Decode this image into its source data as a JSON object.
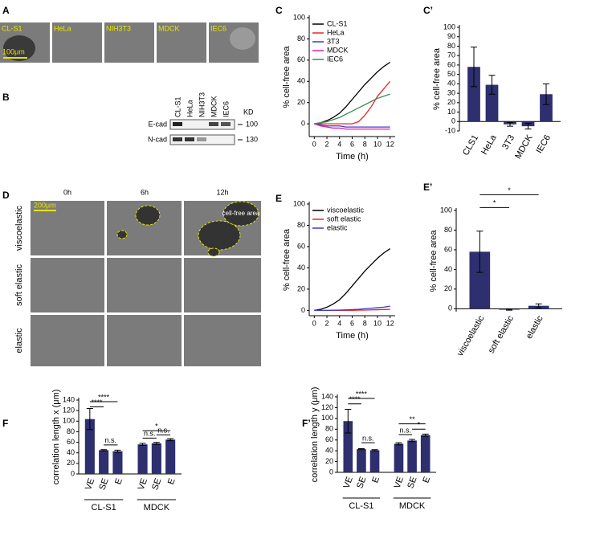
{
  "panel_labels": [
    "A",
    "B",
    "C",
    "C’",
    "D",
    "E",
    "E’",
    "F",
    "F’"
  ],
  "panel_a": {
    "cell_lines": [
      "CL-S1",
      "HeLa",
      "NIH3T3",
      "MDCK",
      "IEC6"
    ],
    "scale_bar": "100μm"
  },
  "panel_b": {
    "lanes": [
      "CL-S1",
      "HeLa",
      "NIH3T3",
      "MDCK",
      "IEC6"
    ],
    "unit": "KD",
    "rows": [
      {
        "label": "E-cad",
        "kd": "100"
      },
      {
        "label": "N-cad",
        "kd": "130"
      }
    ]
  },
  "panel_d": {
    "times": [
      "0h",
      "6h",
      "12h"
    ],
    "conditions": [
      "viscoelastic",
      "soft elastic",
      "elastic"
    ],
    "scale_bar": "200μm",
    "annotation": "cell-free area"
  },
  "chart_data": [
    {
      "type": "line",
      "xlabel": "Time (h)",
      "ylabel": "% cell-free area",
      "x": [
        0,
        1,
        2,
        3,
        4,
        5,
        6,
        7,
        8,
        9,
        10,
        11,
        12
      ],
      "xlim": [
        -0.8,
        12.8
      ],
      "xticks": [
        0,
        2,
        4,
        6,
        8,
        10,
        12
      ],
      "ylim": [
        -12,
        100
      ],
      "yticks": [
        0,
        20,
        40,
        60,
        80,
        100
      ],
      "series": [
        {
          "name": "CL-S1",
          "color": "#000000",
          "values": [
            0,
            1,
            3,
            6,
            10,
            16,
            23,
            30,
            37,
            43,
            49,
            54,
            58
          ]
        },
        {
          "name": "HeLa",
          "color": "#e8262b",
          "values": [
            0,
            0,
            0,
            0,
            0,
            0,
            0,
            2,
            8,
            16,
            26,
            33,
            40
          ]
        },
        {
          "name": "3T3",
          "color": "#3b3bc4",
          "values": [
            0,
            -1,
            -2,
            -2,
            -2,
            -3,
            -3,
            -3,
            -3,
            -3,
            -3,
            -3,
            -3
          ]
        },
        {
          "name": "MDCK",
          "color": "#d61fb8",
          "values": [
            0,
            -2,
            -3,
            -4,
            -4,
            -5,
            -5,
            -5,
            -5,
            -5,
            -5,
            -5,
            -5
          ]
        },
        {
          "name": "IEC6",
          "color": "#3e8a5a",
          "values": [
            0,
            1,
            2,
            4,
            6,
            9,
            12,
            15,
            18,
            21,
            24,
            26,
            28
          ]
        }
      ]
    },
    {
      "type": "bar",
      "ylabel": "% cell-free area",
      "color": "#2e2f6e",
      "categories": [
        "CLS1",
        "HeLa",
        "3T3",
        "MDCK",
        "IEC6"
      ],
      "values": [
        58,
        39,
        -3,
        -5,
        29
      ],
      "errors": [
        21,
        10,
        2,
        3,
        11
      ],
      "ylim": [
        -10,
        100
      ],
      "yticks": [
        -10,
        0,
        10,
        20,
        30,
        40,
        50,
        60,
        70,
        80,
        90,
        100
      ]
    },
    {
      "type": "line",
      "xlabel": "Time (h)",
      "ylabel": "% cell-free area",
      "x": [
        0,
        1,
        2,
        3,
        4,
        5,
        6,
        7,
        8,
        9,
        10,
        11,
        12
      ],
      "xlim": [
        -0.8,
        12.8
      ],
      "xticks": [
        0,
        2,
        4,
        6,
        8,
        10,
        12
      ],
      "ylim": [
        -5,
        100
      ],
      "yticks": [
        0,
        20,
        40,
        60,
        80,
        100
      ],
      "series": [
        {
          "name": "viscoelastic",
          "color": "#000000",
          "values": [
            0,
            1,
            3,
            6,
            10,
            16,
            23,
            30,
            37,
            43,
            49,
            54,
            58
          ]
        },
        {
          "name": "soft elastic",
          "color": "#e8262b",
          "values": [
            0,
            0,
            0,
            0,
            0,
            0,
            0,
            0.2,
            0.3,
            0.5,
            0.6,
            0.8,
            1
          ]
        },
        {
          "name": "elastic",
          "color": "#3b3bc4",
          "values": [
            0,
            0,
            0,
            0.2,
            0.3,
            0.5,
            0.7,
            1,
            1.5,
            2,
            2.5,
            3,
            4
          ]
        }
      ]
    },
    {
      "type": "bar",
      "ylabel": "% cell-free area",
      "color": "#2e2f6e",
      "categories": [
        "viscoelastic",
        "soft elastic",
        "elastic"
      ],
      "values": [
        58,
        -1,
        3
      ],
      "errors": [
        21,
        0.5,
        2
      ],
      "ylim": [
        -3,
        100
      ],
      "yticks": [
        0,
        20,
        40,
        60,
        80,
        100
      ],
      "annotations": [
        "*",
        "*"
      ]
    },
    {
      "type": "bar",
      "ylabel": "correlation length x (μm)",
      "color": "#2e2f6e",
      "categories": [
        "VE",
        "SE",
        "E",
        "VE",
        "SE",
        "E"
      ],
      "groups": [
        "CL-S1",
        "MDCK"
      ],
      "values": [
        104,
        45,
        43,
        56,
        58,
        65
      ],
      "errors": [
        20,
        1,
        2,
        2,
        2,
        2
      ],
      "ylim": [
        0,
        140
      ],
      "yticks": [
        0,
        20,
        40,
        60,
        80,
        100,
        120,
        140
      ],
      "annotations": [
        "****",
        "****",
        "n.s.",
        "*",
        "n.s.",
        "n.s."
      ]
    },
    {
      "type": "bar",
      "ylabel": "correlation length y (μm)",
      "color": "#2e2f6e",
      "categories": [
        "VE",
        "SE",
        "E",
        "VE",
        "SE",
        "E"
      ],
      "groups": [
        "CL-S1",
        "MDCK"
      ],
      "values": [
        95,
        43,
        41,
        53,
        59,
        69
      ],
      "errors": [
        22,
        1,
        1,
        2,
        2,
        2
      ],
      "ylim": [
        0,
        140
      ],
      "yticks": [
        0,
        20,
        40,
        60,
        80,
        100,
        120,
        140
      ],
      "annotations": [
        "****",
        "****",
        "n.s.",
        "**",
        "n.s.",
        "*"
      ]
    }
  ]
}
